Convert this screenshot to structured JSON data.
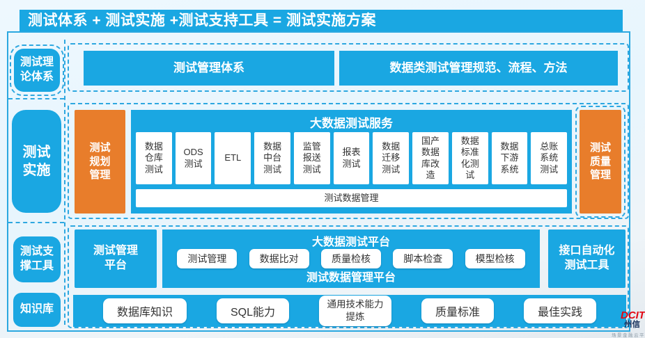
{
  "header": {
    "title": "测试体系 + 测试实施 +测试支持工具 = 测试实施方案"
  },
  "colors": {
    "primary_blue": "#1aa7e2",
    "accent_orange": "#e87d2b",
    "dashed_border_blue": "#2da7e0",
    "canvas_light_blue": "#e9f6fd",
    "box_text_dark": "#333333",
    "logo_red": "#e30613"
  },
  "sidebar": {
    "items": [
      {
        "label": "测试理论体系"
      },
      {
        "label": "测试实施"
      },
      {
        "label": "测试支撑工具"
      },
      {
        "label": "知识库"
      }
    ]
  },
  "theory_row": {
    "left_box": "测试管理体系",
    "right_box": "数据类测试管理规范、流程、方法"
  },
  "implementation_row": {
    "planning_box": "测试规划管理",
    "quality_box": "测试质量管理",
    "service_panel": {
      "title": "大数据测试服务",
      "items": [
        "数据仓库测试",
        "ODS测试",
        "ETL",
        "数据中台测试",
        "监管报送测试",
        "报表测试",
        "数据迁移测试",
        "国产数据库改造",
        "数据标准化测试",
        "数据下游系统",
        "总账系统测试"
      ],
      "footer": "测试数据管理"
    }
  },
  "tools_row": {
    "management_platform_box": "测试管理平台",
    "api_tool_box": "接口自动化测试工具",
    "platform_panel": {
      "title": "大数据测试平台",
      "items": [
        "测试管理",
        "数据比对",
        "质量检核",
        "脚本检查",
        "模型检核"
      ],
      "footer": "测试数据管理平台"
    }
  },
  "knowledge_row": {
    "items": [
      "数据库知识",
      "SQL能力",
      "通用技术能力提炼",
      "质量标准",
      "最佳实践"
    ]
  },
  "logo": {
    "wordmark": "DCITS",
    "cn_name": "州信",
    "tagline": "场景金融云平台引领"
  }
}
